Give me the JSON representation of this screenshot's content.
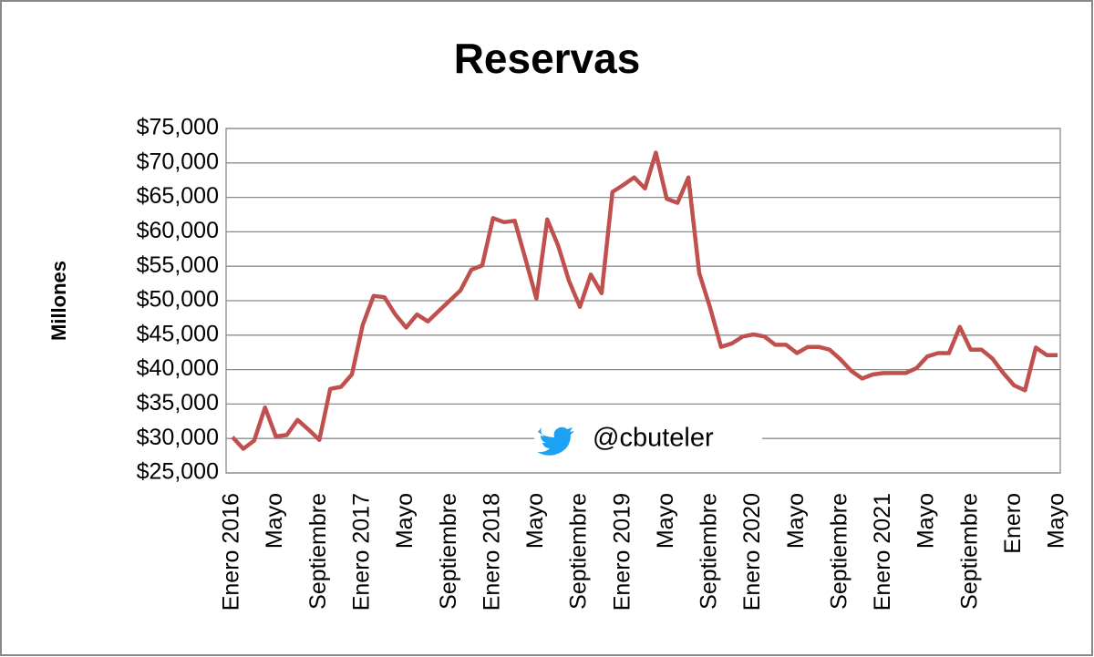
{
  "chart_data": {
    "type": "line",
    "title": "Reservas",
    "y_label": "Millones",
    "annotation": "@cbuteler",
    "categories": [
      "Enero 2016",
      null,
      null,
      null,
      "Mayo",
      null,
      null,
      null,
      "Septiembre",
      null,
      null,
      null,
      "Enero 2017",
      null,
      null,
      null,
      "Mayo",
      null,
      null,
      null,
      "Septiembre",
      null,
      null,
      null,
      "Enero 2018",
      null,
      null,
      null,
      "Mayo",
      null,
      null,
      null,
      "Septiembre",
      null,
      null,
      null,
      "Enero 2019",
      null,
      null,
      null,
      "Mayo",
      null,
      null,
      null,
      "Septiembre",
      null,
      null,
      null,
      "Enero 2020",
      null,
      null,
      null,
      "Mayo",
      null,
      null,
      null,
      "Septiembre",
      null,
      null,
      null,
      "Enero 2021",
      null,
      null,
      null,
      "Mayo",
      null,
      null,
      null,
      "Septiembre",
      null,
      null,
      null,
      "Enero",
      null,
      null,
      null,
      "Mayo"
    ],
    "values": [
      30200,
      28500,
      29700,
      34500,
      30300,
      30500,
      32700,
      31300,
      29800,
      37200,
      37500,
      39300,
      46500,
      50700,
      50500,
      48000,
      46100,
      48000,
      47000,
      48500,
      50000,
      51500,
      54500,
      55100,
      62000,
      61400,
      61600,
      56000,
      50300,
      61800,
      58000,
      52900,
      49100,
      53800,
      51100,
      65800,
      66800,
      67900,
      66300,
      71500,
      64800,
      64200,
      67900,
      54000,
      49000,
      43300,
      43800,
      44800,
      45100,
      44800,
      43600,
      43600,
      42400,
      43300,
      43300,
      42900,
      41500,
      39800,
      38700,
      39300,
      39500,
      39500,
      39500,
      40200,
      41900,
      42400,
      42400,
      46200,
      42900,
      42900,
      41600,
      39500,
      37700,
      37000,
      43200,
      42100,
      42100
    ],
    "color": "#c0504d",
    "ylim": [
      25000,
      75000
    ],
    "yticks": [
      {
        "value": 25000,
        "label": "$25,000"
      },
      {
        "value": 30000,
        "label": "$30,000"
      },
      {
        "value": 35000,
        "label": "$35,000"
      },
      {
        "value": 40000,
        "label": "$40,000"
      },
      {
        "value": 45000,
        "label": "$45,000"
      },
      {
        "value": 50000,
        "label": "$50,000"
      },
      {
        "value": 55000,
        "label": "$55,000"
      },
      {
        "value": 60000,
        "label": "$60,000"
      },
      {
        "value": 65000,
        "label": "$65,000"
      },
      {
        "value": 70000,
        "label": "$70,000"
      },
      {
        "value": 75000,
        "label": "$75,000"
      }
    ],
    "grid": true
  }
}
